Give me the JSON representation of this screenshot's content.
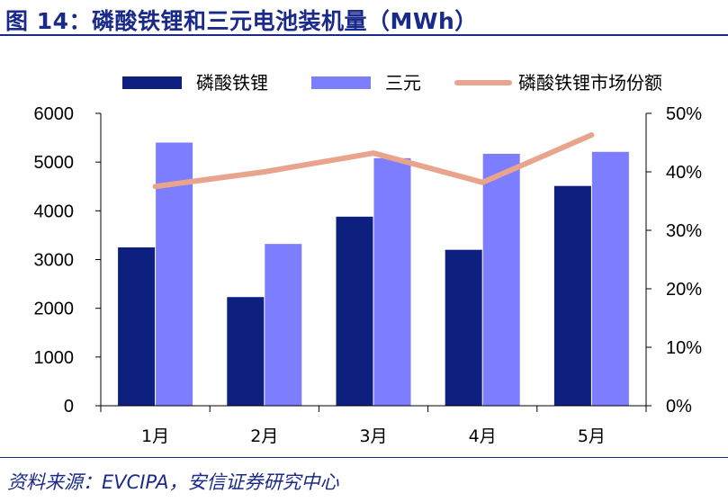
{
  "figure": {
    "title": "图 14：磷酸铁锂和三元电池装机量（MWh）",
    "source": "资料来源：EVCIPA，安信证券研究中心"
  },
  "colors": {
    "title": "#1a2a8a",
    "lfp_bar": "#0d2080",
    "ncm_bar": "#7d7dff",
    "share_line": "#e8a48c",
    "axis": "#000000"
  },
  "chart_data": {
    "type": "bar",
    "title": "磷酸铁锂和三元电池装机量（MWh）",
    "categories": [
      "1月",
      "2月",
      "3月",
      "4月",
      "5月"
    ],
    "series": [
      {
        "name": "磷酸铁锂",
        "kind": "bar",
        "axis": "left",
        "values": [
          3250,
          2230,
          3880,
          3200,
          4510
        ]
      },
      {
        "name": "三元",
        "kind": "bar",
        "axis": "left",
        "values": [
          5400,
          3320,
          5080,
          5170,
          5210
        ]
      },
      {
        "name": "磷酸铁锂市场份额",
        "kind": "line",
        "axis": "right",
        "values": [
          37.5,
          40.0,
          43.2,
          38.2,
          46.3
        ]
      }
    ],
    "y_left": {
      "lim": [
        0,
        6000
      ],
      "ticks": [
        0,
        1000,
        2000,
        3000,
        4000,
        5000,
        6000
      ],
      "tick_labels": [
        "0",
        "1000",
        "2000",
        "3000",
        "4000",
        "5000",
        "6000"
      ]
    },
    "y_right": {
      "lim": [
        0,
        50
      ],
      "ticks": [
        0,
        10,
        20,
        30,
        40,
        50
      ],
      "tick_labels": [
        "0%",
        "10%",
        "20%",
        "30%",
        "40%",
        "50%"
      ]
    },
    "xlabel": "",
    "ylabel": "",
    "grid": false,
    "legend_position": "top"
  }
}
